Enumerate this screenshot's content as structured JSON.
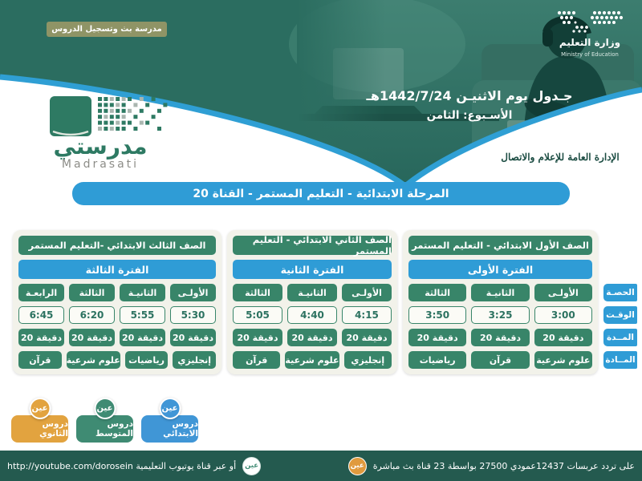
{
  "header": {
    "ribbon": "مدرسة بث وتسجيل الدروس",
    "ministry_ar": "وزارة التعليم",
    "ministry_en": "Ministry of Education",
    "title_line1": "جـدول يوم الاثنيـن 1442/7/24هـ",
    "title_line2": "الأسـبوع: الثامن"
  },
  "brand": {
    "logo_ar": "مدرستي",
    "logo_en": "Madrasati",
    "department": "الإدارة العامة للإعلام والاتصال"
  },
  "banner": {
    "label": "المرحلة الابتدائية - التعليم المستمر - القناة 20"
  },
  "row_labels": [
    "الحصـة",
    "الوقـت",
    "المــدة",
    "المــادة"
  ],
  "tables": [
    {
      "grade": "الصف الأول الابتدائي - التعليم المستمر",
      "period_title": "الفترة الأولى",
      "periods": [
        "الأولـى",
        "الثانيـة",
        "الثالثة"
      ],
      "times": [
        "3:00",
        "3:25",
        "3:50"
      ],
      "durations": [
        "20 دقيقة",
        "20 دقيقة",
        "20 دقيقة"
      ],
      "subjects": [
        "علوم شرعية",
        "قرآن",
        "رياضيات"
      ]
    },
    {
      "grade": "الصف الثاني الابتدائي - التعليم المستمر",
      "period_title": "الفترة الثانية",
      "periods": [
        "الأولـى",
        "الثانيـة",
        "الثالثة"
      ],
      "times": [
        "4:15",
        "4:40",
        "5:05"
      ],
      "durations": [
        "20 دقيقة",
        "20 دقيقة",
        "20 دقيقة"
      ],
      "subjects": [
        "إنجليزي",
        "علوم شرعية",
        "قرآن"
      ]
    },
    {
      "grade": "الصف الثالث الابتدائي -التعليم المستمر",
      "period_title": "الفترة الثالثة",
      "periods": [
        "الأولـى",
        "الثانيـة",
        "الثالثة",
        "الرابعـة"
      ],
      "times": [
        "5:30",
        "5:55",
        "6:20",
        "6:45"
      ],
      "durations": [
        "20 دقيقة",
        "20 دقيقة",
        "20 دقيقة",
        "20 دقيقة"
      ],
      "subjects": [
        "إنجليزي",
        "رياضيات",
        "علوم شرعية",
        "قرآن"
      ]
    }
  ],
  "channel_buttons": [
    {
      "label": "دروس الابتدائي",
      "badge": "عين",
      "color": "#4096d6"
    },
    {
      "label": "دروس المتوسط",
      "badge": "عين",
      "color": "#3f8b73"
    },
    {
      "label": "دروس الثانوي",
      "badge": "عين",
      "color": "#e2a33f"
    }
  ],
  "footer": {
    "badge_label": "عين",
    "satellite_info": "على تردد عربسات 12437عمودي 27500 بواسطة 23 قناة بث مباشرة",
    "youtube_info": "أو عبر قناة يوتيوب التعليمية http://youtube.com/dorosein"
  },
  "colors": {
    "header_teal": "#2b6d60",
    "curve_blue": "#2f9fd4",
    "cell_green": "#388569",
    "label_blue": "#2f9cd6",
    "footer_green": "#245a4f",
    "ribbon_olive": "#8f9466"
  }
}
